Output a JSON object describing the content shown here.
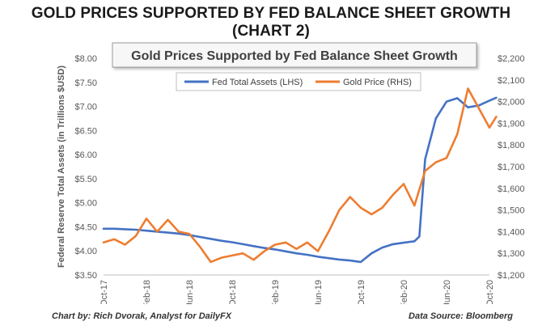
{
  "header": {
    "title": "GOLD PRICES SUPPORTED BY FED BALANCE SHEET GROWTH (CHART 2)"
  },
  "footer": {
    "credit": "Chart by: Rich Dvorak, Analyst for DailyFX",
    "source": "Data Source: Bloomberg"
  },
  "chart_data": {
    "type": "line",
    "title": "Gold Prices Supported by Fed Balance Sheet Growth",
    "ylabel": "Federal Reserve Total Assets (in Trillions $USD)",
    "y2label": "",
    "grid": false,
    "legend_position": "top",
    "categories": [
      "Oct-17",
      "Feb-18",
      "Jun-18",
      "Oct-18",
      "Feb-19",
      "Jun-19",
      "Oct-19",
      "Feb-20",
      "Jun-20",
      "Oct-20"
    ],
    "x_range": [
      "2017-10",
      "2020-10"
    ],
    "ylim": [
      3.5,
      8.0
    ],
    "y_ticks": [
      "$3.50",
      "$4.00",
      "$4.50",
      "$5.00",
      "$5.50",
      "$6.00",
      "$6.50",
      "$7.00",
      "$7.50",
      "$8.00"
    ],
    "y2lim": [
      1200,
      2200
    ],
    "y2_ticks": [
      "$1,200",
      "$1,300",
      "$1,400",
      "$1,500",
      "$1,600",
      "$1,700",
      "$1,800",
      "$1,900",
      "$2,000",
      "$2,100",
      "$2,200"
    ],
    "series": [
      {
        "name": "Fed Total Assets (LHS)",
        "axis": "left",
        "color": "#4472c4",
        "points": [
          [
            "2017-10",
            4.46
          ],
          [
            "2017-11",
            4.46
          ],
          [
            "2017-12",
            4.45
          ],
          [
            "2018-01",
            4.44
          ],
          [
            "2018-02",
            4.42
          ],
          [
            "2018-03",
            4.4
          ],
          [
            "2018-04",
            4.38
          ],
          [
            "2018-05",
            4.36
          ],
          [
            "2018-06",
            4.33
          ],
          [
            "2018-07",
            4.29
          ],
          [
            "2018-08",
            4.25
          ],
          [
            "2018-09",
            4.21
          ],
          [
            "2018-10",
            4.18
          ],
          [
            "2018-11",
            4.14
          ],
          [
            "2018-12",
            4.1
          ],
          [
            "2019-01",
            4.06
          ],
          [
            "2019-02",
            4.03
          ],
          [
            "2019-03",
            3.99
          ],
          [
            "2019-04",
            3.95
          ],
          [
            "2019-05",
            3.92
          ],
          [
            "2019-06",
            3.88
          ],
          [
            "2019-07",
            3.85
          ],
          [
            "2019-08",
            3.82
          ],
          [
            "2019-09",
            3.8
          ],
          [
            "2019-10",
            3.77
          ],
          [
            "2019-11",
            3.95
          ],
          [
            "2019-12",
            4.07
          ],
          [
            "2020-01",
            4.14
          ],
          [
            "2020-02",
            4.17
          ],
          [
            "2020-03",
            4.2
          ],
          [
            "2020-03-15",
            4.3
          ],
          [
            "2020-04",
            5.9
          ],
          [
            "2020-05",
            6.75
          ],
          [
            "2020-06",
            7.1
          ],
          [
            "2020-07",
            7.17
          ],
          [
            "2020-08",
            6.98
          ],
          [
            "2020-09",
            7.02
          ],
          [
            "2020-10",
            7.12
          ],
          [
            "2020-10-20",
            7.18
          ]
        ]
      },
      {
        "name": "Gold Price (RHS)",
        "axis": "right",
        "color": "#ed7d31",
        "points": [
          [
            "2017-10",
            1350
          ],
          [
            "2017-11",
            1365
          ],
          [
            "2017-12",
            1340
          ],
          [
            "2018-01",
            1380
          ],
          [
            "2018-02",
            1460
          ],
          [
            "2018-03",
            1400
          ],
          [
            "2018-04",
            1455
          ],
          [
            "2018-05",
            1400
          ],
          [
            "2018-06",
            1390
          ],
          [
            "2018-07",
            1330
          ],
          [
            "2018-08",
            1260
          ],
          [
            "2018-09",
            1280
          ],
          [
            "2018-10",
            1290
          ],
          [
            "2018-11",
            1300
          ],
          [
            "2018-12",
            1270
          ],
          [
            "2019-01",
            1310
          ],
          [
            "2019-02",
            1340
          ],
          [
            "2019-03",
            1350
          ],
          [
            "2019-04",
            1320
          ],
          [
            "2019-05",
            1350
          ],
          [
            "2019-06",
            1310
          ],
          [
            "2019-07",
            1400
          ],
          [
            "2019-08",
            1500
          ],
          [
            "2019-09",
            1560
          ],
          [
            "2019-10",
            1510
          ],
          [
            "2019-11",
            1480
          ],
          [
            "2019-12",
            1510
          ],
          [
            "2020-01",
            1570
          ],
          [
            "2020-02",
            1620
          ],
          [
            "2020-03",
            1520
          ],
          [
            "2020-04",
            1680
          ],
          [
            "2020-05",
            1720
          ],
          [
            "2020-06",
            1740
          ],
          [
            "2020-07",
            1850
          ],
          [
            "2020-08",
            2060
          ],
          [
            "2020-09",
            1970
          ],
          [
            "2020-10",
            1880
          ],
          [
            "2020-10-20",
            1930
          ]
        ]
      }
    ]
  }
}
